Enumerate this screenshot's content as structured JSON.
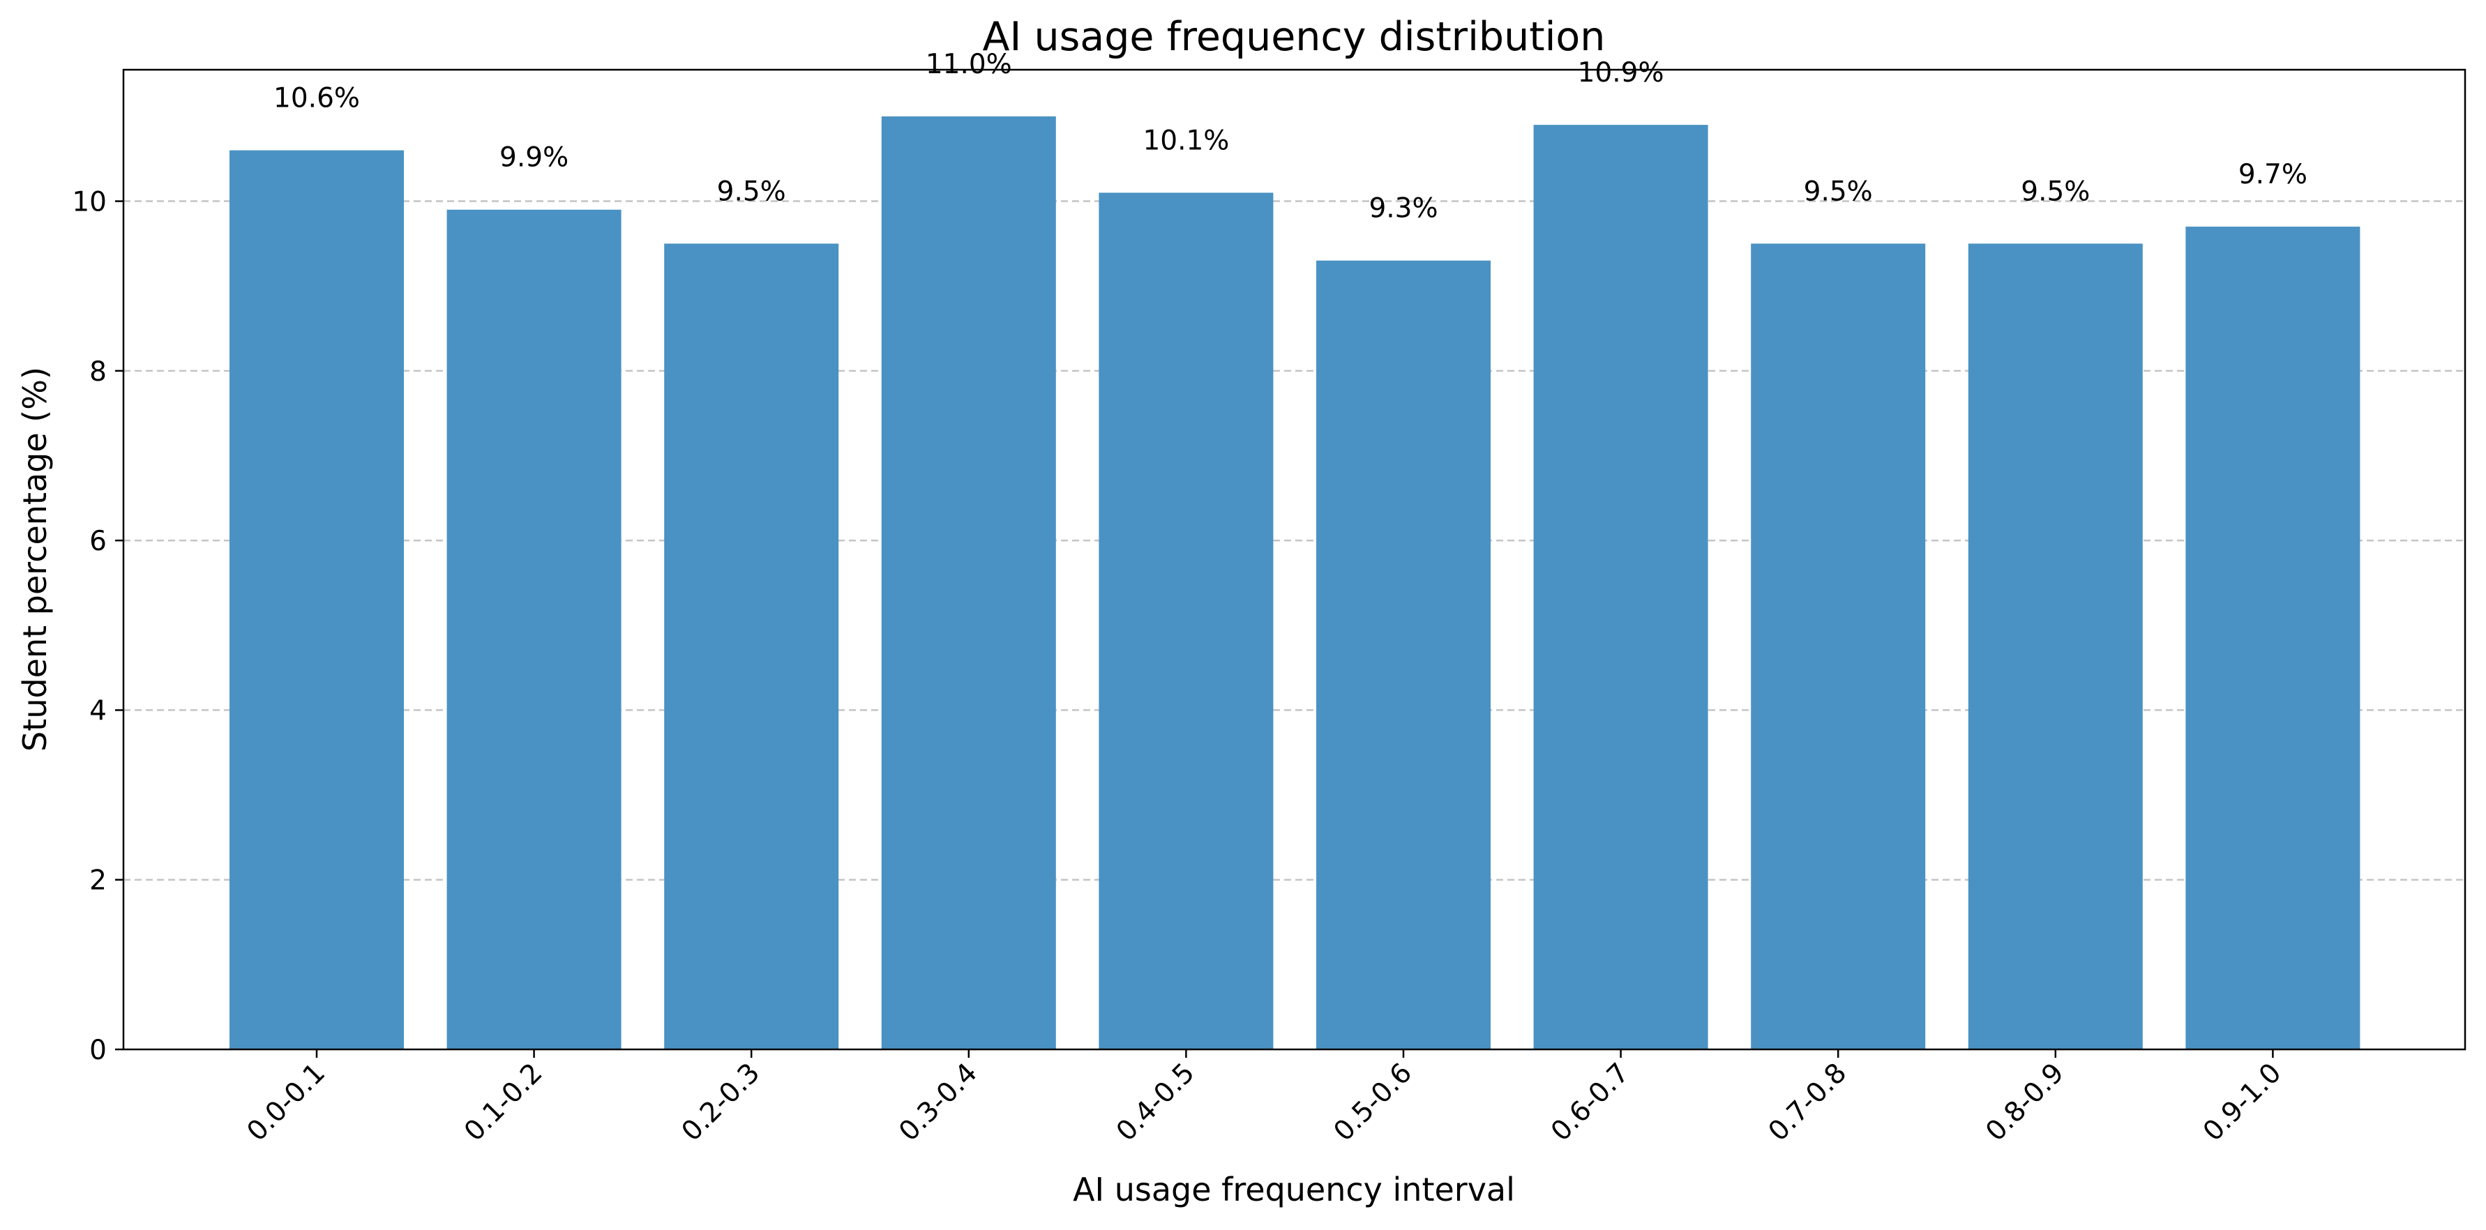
{
  "chart_data": {
    "type": "bar",
    "title": "AI usage frequency distribution",
    "xlabel": "AI usage frequency interval",
    "ylabel": "Student percentage (%)",
    "categories": [
      "0.0-0.1",
      "0.1-0.2",
      "0.2-0.3",
      "0.3-0.4",
      "0.4-0.5",
      "0.5-0.6",
      "0.6-0.7",
      "0.7-0.8",
      "0.8-0.9",
      "0.9-1.0"
    ],
    "values": [
      10.6,
      9.9,
      9.5,
      11.0,
      10.1,
      9.3,
      10.9,
      9.5,
      9.5,
      9.7
    ],
    "value_labels": [
      "10.6%",
      "9.9%",
      "9.5%",
      "11.0%",
      "10.1%",
      "9.3%",
      "10.9%",
      "9.5%",
      "9.5%",
      "9.7%"
    ],
    "ylim": [
      0,
      11.55
    ],
    "yticks": [
      0,
      2,
      4,
      6,
      8,
      10
    ],
    "x_tick_rotation": -45,
    "grid": {
      "y": true,
      "x": false,
      "style": "dashed"
    },
    "legend": "none",
    "colors": {
      "bar": "#4a92c3",
      "grid": "#c4c4c4",
      "axis": "#000000",
      "text": "#000000"
    }
  }
}
